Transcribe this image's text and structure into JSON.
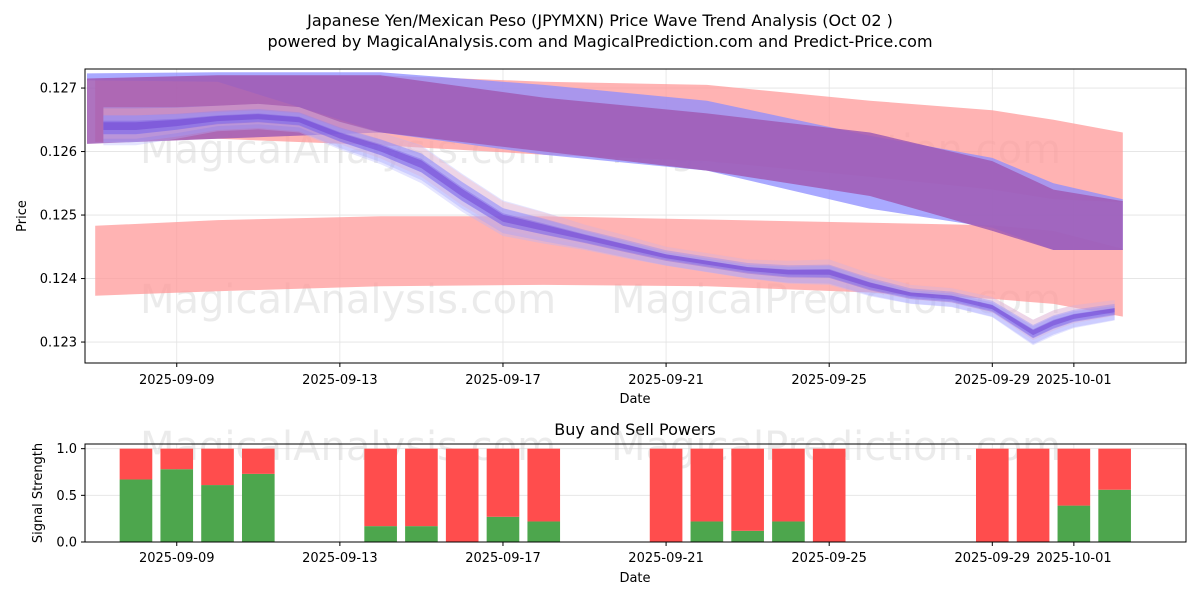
{
  "title_line1": "Japanese Yen/Mexican Peso (JPYMXN) Price Wave Trend Analysis (Oct 02 )",
  "title_line2": "powered by MagicalAnalysis.com and MagicalPrediction.com and Predict-Price.com",
  "watermarks": [
    "MagicalAnalysis.com",
    "MagicalPrediction.com"
  ],
  "colors": {
    "red_band": "#ff9999",
    "blue_band": "#8c8cff",
    "purple_band": "#a05ab4",
    "buy": "#4da64d",
    "sell": "#ff4d4d"
  },
  "chart_data": [
    {
      "type": "area",
      "title": "",
      "xlabel": "Date",
      "ylabel": "Price",
      "x_tick_labels": [
        "2025-09-09",
        "2025-09-13",
        "2025-09-17",
        "2025-09-21",
        "2025-09-25",
        "2025-09-29",
        "2025-10-01"
      ],
      "y_tick_labels": [
        "0.127",
        "0.126",
        "0.125",
        "0.124",
        "0.123"
      ],
      "ylim": [
        0.12267,
        0.1273
      ],
      "x_day_range": [
        "2025-09-06 18:00",
        "2025-10-03 18:00"
      ],
      "series": [
        {
          "name": "upper red band",
          "color": "red",
          "x": [
            7,
            10,
            14,
            18,
            22,
            26,
            29,
            30.5,
            32.2
          ],
          "upper": [
            0.12715,
            0.1272,
            0.1272,
            0.1271,
            0.12705,
            0.1268,
            0.12665,
            0.1265,
            0.1263
          ],
          "lower": [
            0.12615,
            0.1262,
            0.1261,
            0.12595,
            0.12585,
            0.1256,
            0.1254,
            0.12525,
            0.1252
          ]
        },
        {
          "name": "lower red band",
          "color": "red",
          "x": [
            7,
            10,
            14,
            18,
            22,
            26,
            29,
            30.5,
            32.2
          ],
          "upper": [
            0.12483,
            0.12492,
            0.12498,
            0.12498,
            0.12493,
            0.12488,
            0.12484,
            0.12475,
            0.12447
          ],
          "lower": [
            0.12373,
            0.1238,
            0.12388,
            0.1239,
            0.12388,
            0.12378,
            0.12368,
            0.1236,
            0.1234
          ]
        },
        {
          "name": "upper blue band",
          "color": "blue",
          "x": [
            6.8,
            10,
            14,
            18,
            22,
            26,
            29,
            30.5,
            32.2
          ],
          "upper": [
            0.12723,
            0.12725,
            0.12725,
            0.12705,
            0.1268,
            0.12625,
            0.1259,
            0.1255,
            0.12525
          ],
          "lower": [
            0.12712,
            0.1271,
            0.1263,
            0.12595,
            0.1257,
            0.1251,
            0.1248,
            0.12445,
            0.12445
          ]
        },
        {
          "name": "purple overlap band",
          "color": "purple",
          "x": [
            6.8,
            10,
            14,
            18,
            22,
            26,
            29,
            30.5,
            32.2
          ],
          "upper": [
            0.12715,
            0.1272,
            0.1272,
            0.12685,
            0.1266,
            0.1263,
            0.12585,
            0.1254,
            0.12522
          ],
          "lower": [
            0.12612,
            0.1262,
            0.1263,
            0.126,
            0.1257,
            0.1253,
            0.12475,
            0.12445,
            0.12445
          ]
        },
        {
          "name": "price waves",
          "color": "blue",
          "x": [
            7.2,
            8,
            9,
            10,
            11,
            12,
            13,
            14,
            15,
            16,
            17,
            18,
            19,
            20,
            21,
            22,
            23,
            24,
            25,
            26,
            27,
            28,
            29,
            30,
            30.5,
            31,
            32
          ],
          "y": [
            0.1264,
            0.1264,
            0.12645,
            0.12652,
            0.12655,
            0.1265,
            0.12625,
            0.12605,
            0.1258,
            0.12535,
            0.12495,
            0.1248,
            0.12465,
            0.1245,
            0.12435,
            0.12425,
            0.12415,
            0.1241,
            0.1241,
            0.1239,
            0.12375,
            0.1237,
            0.12355,
            0.12315,
            0.1233,
            0.1234,
            0.1235
          ],
          "spread": [
            0.0003,
            0.0003,
            0.00025,
            0.0002,
            0.0002,
            0.0002,
            0.00022,
            0.00025,
            0.0003,
            0.0003,
            0.00028,
            0.00025,
            0.0002,
            0.00018,
            0.00015,
            0.00015,
            0.00015,
            0.00018,
            0.0002,
            0.00018,
            0.00015,
            0.00015,
            0.00016,
            0.0002,
            0.0002,
            0.00018,
            0.00016
          ]
        }
      ]
    },
    {
      "type": "bar",
      "title": "Buy and Sell Powers",
      "xlabel": "Date",
      "ylabel": "Signal Strength",
      "x_tick_labels": [
        "2025-09-09",
        "2025-09-13",
        "2025-09-17",
        "2025-09-21",
        "2025-09-25",
        "2025-09-29",
        "2025-10-01"
      ],
      "y_tick_labels": [
        "0.0",
        "0.5",
        "1.0"
      ],
      "ylim": [
        0,
        1.05
      ],
      "categories": [
        "2025-09-08",
        "2025-09-09",
        "2025-09-10",
        "2025-09-11",
        "2025-09-14",
        "2025-09-15",
        "2025-09-16",
        "2025-09-17",
        "2025-09-18",
        "2025-09-21",
        "2025-09-22",
        "2025-09-23",
        "2025-09-24",
        "2025-09-25",
        "2025-09-29",
        "2025-09-30",
        "2025-10-01",
        "2025-10-02"
      ],
      "series": [
        {
          "name": "Buy",
          "values": [
            0.67,
            0.78,
            0.61,
            0.73,
            0.17,
            0.17,
            0.0,
            0.27,
            0.22,
            0.0,
            0.22,
            0.12,
            0.22,
            0.0,
            0.0,
            0.0,
            0.39,
            0.56
          ]
        },
        {
          "name": "Sell",
          "values": [
            0.33,
            0.22,
            0.39,
            0.27,
            0.83,
            0.83,
            1.0,
            0.73,
            0.78,
            1.0,
            0.78,
            0.88,
            0.78,
            1.0,
            1.0,
            1.0,
            0.61,
            0.44
          ]
        }
      ]
    }
  ]
}
